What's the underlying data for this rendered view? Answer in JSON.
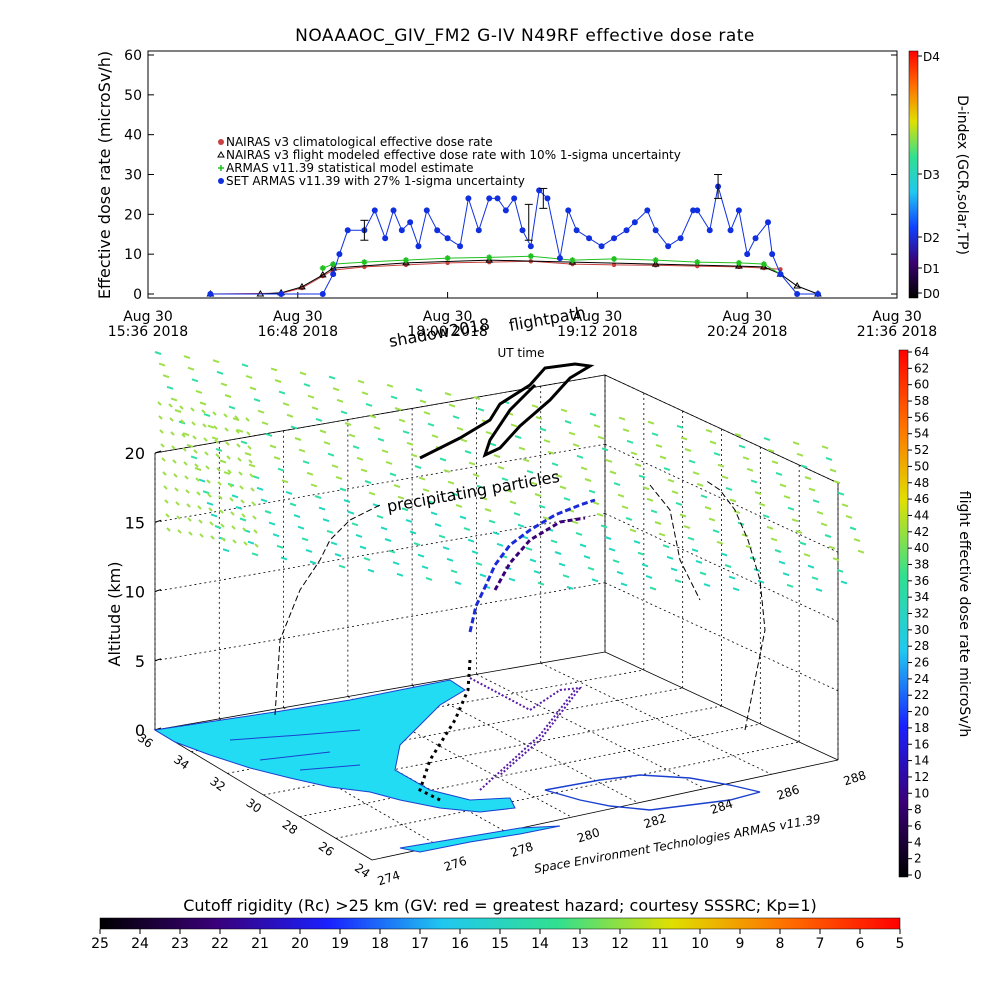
{
  "chart_data": [
    {
      "id": "top-timeseries",
      "type": "scatter",
      "title": "NOAAAOC_GIV_FM2 G-IV   N49RF  effective dose rate",
      "xlabel": "UT time",
      "ylabel": "Effective dose rate (microSv/h)",
      "ylim": [
        0,
        60
      ],
      "yticks": [
        0,
        10,
        20,
        30,
        40,
        50,
        60
      ],
      "xlim_min": [
        936,
        1296
      ],
      "xticks": [
        {
          "min": 936,
          "line1": "Aug 30",
          "line2": "15:36 2018"
        },
        {
          "min": 1008,
          "line1": "Aug 30",
          "line2": "16:48 2018"
        },
        {
          "min": 1080,
          "line1": "Aug 30",
          "line2": "18:00 2018"
        },
        {
          "min": 1152,
          "line1": "Aug 30",
          "line2": "19:12 2018"
        },
        {
          "min": 1224,
          "line1": "Aug 30",
          "line2": "20:24 2018"
        },
        {
          "min": 1296,
          "line1": "Aug 30",
          "line2": "21:36 2018"
        }
      ],
      "legend_position": "upper-left",
      "series": [
        {
          "name": "NAIRAS v3 climatological effective dose rate",
          "color": "#c84040",
          "marker": "circle",
          "x": [
            966,
            1000,
            1010,
            1020,
            1025,
            1040,
            1060,
            1080,
            1100,
            1120,
            1140,
            1160,
            1180,
            1200,
            1220,
            1232,
            1240
          ],
          "y": [
            0,
            0.2,
            1.5,
            4.5,
            6.0,
            6.8,
            7.3,
            7.8,
            8.0,
            8.2,
            7.5,
            7.3,
            7.2,
            7.0,
            6.8,
            6.5,
            6.2
          ]
        },
        {
          "name": "NAIRAS v3 flight modeled effective dose rate with 10% 1-sigma uncertainty",
          "color": "#000000",
          "marker": "triangle",
          "x": [
            966,
            990,
            1000,
            1010,
            1020,
            1025,
            1060,
            1100,
            1140,
            1180,
            1220,
            1232,
            1240,
            1248,
            1258
          ],
          "y": [
            0,
            0,
            0.3,
            1.8,
            4.8,
            6.5,
            7.8,
            8.5,
            8.0,
            7.5,
            7.0,
            6.8,
            5.0,
            2.0,
            0
          ]
        },
        {
          "name": "ARMAS v11.39 statistical model estimate",
          "color": "#20c020",
          "marker": "star",
          "x": [
            1020,
            1025,
            1040,
            1060,
            1080,
            1100,
            1120,
            1140,
            1160,
            1180,
            1200,
            1220,
            1232,
            1240
          ],
          "y": [
            6.5,
            7.5,
            8.0,
            8.5,
            9.0,
            9.2,
            9.5,
            8.5,
            8.8,
            8.5,
            8.0,
            7.8,
            7.5,
            5.0
          ]
        },
        {
          "name": "SET ARMAS v11.39 with 27% 1-sigma uncertainty",
          "color": "#1030e0",
          "marker": "circle",
          "x": [
            966,
            1000,
            1020,
            1025,
            1028,
            1032,
            1040,
            1045,
            1050,
            1054,
            1058,
            1062,
            1066,
            1070,
            1075,
            1080,
            1086,
            1090,
            1095,
            1100,
            1104,
            1108,
            1112,
            1116,
            1120,
            1124,
            1128,
            1134,
            1138,
            1142,
            1148,
            1154,
            1160,
            1166,
            1170,
            1176,
            1180,
            1186,
            1192,
            1198,
            1200,
            1206,
            1210,
            1216,
            1220,
            1224,
            1228,
            1234,
            1236,
            1240,
            1248,
            1258
          ],
          "y": [
            0,
            0,
            0,
            5,
            10,
            16,
            16,
            21,
            14,
            21,
            16,
            18,
            12,
            21,
            16,
            14,
            12,
            24,
            16,
            24,
            24,
            21,
            24,
            16,
            12,
            26,
            24,
            9,
            21,
            16,
            14,
            12,
            14,
            16,
            18,
            21,
            16,
            12,
            14,
            21,
            21,
            16,
            27,
            16,
            21,
            10,
            14,
            18,
            10,
            5,
            0,
            0
          ]
        }
      ],
      "error_bars": [
        {
          "x": 1040,
          "y": 16,
          "yerr": 2.5
        },
        {
          "x": 1119,
          "y": 18,
          "yerr": 4.5
        },
        {
          "x": 1126,
          "y": 24,
          "yerr": 2.5
        },
        {
          "x": 1210,
          "y": 27,
          "yerr": 3.0
        }
      ],
      "colorbar": {
        "label": "D-index (GCR,solar,TP)",
        "ticks": [
          "D0",
          "D1",
          "D2",
          "D3",
          "D4"
        ],
        "colors": [
          "#000000",
          "#3a0070",
          "#1040ff",
          "#20c8f0",
          "#30e090",
          "#e0e000",
          "#ff7000",
          "#ff0000"
        ]
      }
    },
    {
      "id": "flightpath-3d",
      "type": "scatter",
      "title": "flightpath",
      "subtitle": "shadow2018",
      "zlabel": "Altitude (km)",
      "zticks": [
        0,
        5,
        10,
        15,
        20
      ],
      "lat_ticks": [
        36,
        34,
        32,
        30,
        28,
        26,
        24
      ],
      "lon_ticks": [
        274,
        276,
        278,
        280,
        282,
        284,
        286,
        288
      ],
      "annotation": "precipitating particles",
      "credit": "Space Environment Technologies ARMAS v11.39",
      "colorbar": {
        "label": "flight effective dose rate microSv/h",
        "min": 0,
        "max": 64,
        "step": 2,
        "colors": [
          "#000000",
          "#3a0078",
          "#1a20ff",
          "#20c8f0",
          "#30e090",
          "#e0e000",
          "#ff7000",
          "#ff0000"
        ]
      }
    },
    {
      "id": "cutoff-colorbar",
      "type": "heatmap",
      "title": "Cutoff rigidity (Rc) >25 km (GV: red = greatest hazard; courtesy SSSRC; Kp=1)",
      "ticks": [
        25,
        24,
        23,
        22,
        21,
        20,
        19,
        18,
        17,
        16,
        15,
        14,
        13,
        12,
        11,
        10,
        9,
        8,
        7,
        6,
        5
      ],
      "colors": [
        "#000000",
        "#3a0078",
        "#1a20ff",
        "#20c8f0",
        "#30e090",
        "#e0e000",
        "#ff7000",
        "#ff0000"
      ]
    }
  ]
}
